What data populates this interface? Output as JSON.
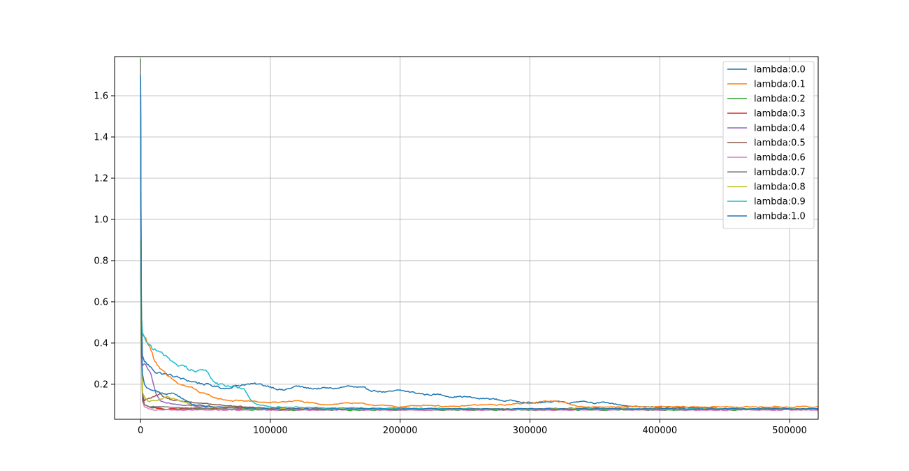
{
  "chart_data": {
    "type": "line",
    "title": "",
    "xlabel": "",
    "ylabel": "",
    "xlim": [
      -20000,
      522000
    ],
    "ylim": [
      0.03,
      1.79
    ],
    "xticks": [
      0,
      100000,
      200000,
      300000,
      400000,
      500000
    ],
    "xtick_labels": [
      "0",
      "100000",
      "200000",
      "300000",
      "400000",
      "500000"
    ],
    "yticks": [
      0.2,
      0.4,
      0.6,
      0.8,
      1.0,
      1.2,
      1.4,
      1.6
    ],
    "ytick_labels": [
      "0.2",
      "0.4",
      "0.6",
      "0.8",
      "1.0",
      "1.2",
      "1.4",
      "1.6"
    ],
    "grid": true,
    "legend_position": "top-right",
    "series": [
      {
        "name": "lambda:0.0",
        "color": "#1f77b4",
        "x": [
          0,
          500,
          1500,
          3000,
          5000,
          8000,
          12000,
          18000,
          25000,
          35000,
          50000,
          65000,
          80000,
          90000,
          100000,
          110000,
          120000,
          130000,
          140000,
          150000,
          160000,
          170000,
          180000,
          190000,
          200000,
          210000,
          220000,
          230000,
          240000,
          250000,
          260000,
          270000,
          280000,
          290000,
          300000,
          310000,
          320000,
          330000,
          340000,
          350000,
          360000,
          370000,
          380000,
          400000,
          420000,
          440000,
          460000,
          480000,
          500000,
          522000
        ],
        "y": [
          0.85,
          0.62,
          0.34,
          0.31,
          0.3,
          0.28,
          0.26,
          0.25,
          0.24,
          0.22,
          0.2,
          0.18,
          0.2,
          0.2,
          0.19,
          0.17,
          0.19,
          0.18,
          0.18,
          0.18,
          0.19,
          0.18,
          0.17,
          0.16,
          0.17,
          0.16,
          0.15,
          0.15,
          0.14,
          0.14,
          0.13,
          0.13,
          0.12,
          0.12,
          0.11,
          0.11,
          0.12,
          0.11,
          0.12,
          0.11,
          0.11,
          0.1,
          0.09,
          0.09,
          0.085,
          0.085,
          0.08,
          0.085,
          0.08,
          0.08
        ]
      },
      {
        "name": "lambda:0.1",
        "color": "#ff7f0e",
        "x": [
          0,
          500,
          1500,
          3000,
          6000,
          10000,
          15000,
          20000,
          25000,
          30000,
          40000,
          50000,
          60000,
          70000,
          80000,
          100000,
          120000,
          140000,
          160000,
          180000,
          200000,
          220000,
          240000,
          260000,
          280000,
          300000,
          320000,
          340000,
          360000,
          380000,
          400000,
          440000,
          480000,
          522000
        ],
        "y": [
          0.75,
          0.55,
          0.45,
          0.43,
          0.4,
          0.33,
          0.28,
          0.24,
          0.22,
          0.2,
          0.18,
          0.15,
          0.13,
          0.12,
          0.12,
          0.11,
          0.12,
          0.1,
          0.11,
          0.1,
          0.09,
          0.1,
          0.09,
          0.1,
          0.1,
          0.11,
          0.12,
          0.09,
          0.09,
          0.09,
          0.09,
          0.09,
          0.09,
          0.09
        ]
      },
      {
        "name": "lambda:0.2",
        "color": "#2ca02c",
        "x": [
          0,
          300,
          800,
          1500,
          3000,
          6000,
          10000,
          20000,
          40000,
          60000,
          100000,
          150000,
          200000,
          250000,
          300000,
          350000,
          400000,
          450000,
          500000,
          522000
        ],
        "y": [
          1.78,
          1.2,
          0.4,
          0.15,
          0.1,
          0.09,
          0.085,
          0.08,
          0.08,
          0.08,
          0.075,
          0.075,
          0.075,
          0.075,
          0.075,
          0.075,
          0.075,
          0.075,
          0.08,
          0.075
        ]
      },
      {
        "name": "lambda:0.3",
        "color": "#d62728",
        "x": [
          0,
          300,
          800,
          1500,
          3000,
          6000,
          10000,
          20000,
          40000,
          60000,
          100000,
          150000,
          200000,
          250000,
          300000,
          350000,
          400000,
          450000,
          500000,
          522000
        ],
        "y": [
          1.7,
          1.1,
          0.35,
          0.14,
          0.1,
          0.09,
          0.085,
          0.08,
          0.08,
          0.08,
          0.08,
          0.08,
          0.08,
          0.08,
          0.08,
          0.08,
          0.08,
          0.08,
          0.08,
          0.08
        ]
      },
      {
        "name": "lambda:0.4",
        "color": "#9467bd",
        "x": [
          0,
          500,
          1500,
          3000,
          5000,
          8000,
          12000,
          15000,
          20000,
          30000,
          50000,
          80000,
          100000,
          150000,
          200000,
          250000,
          300000,
          350000,
          400000,
          450000,
          500000,
          522000
        ],
        "y": [
          0.8,
          0.45,
          0.29,
          0.3,
          0.28,
          0.25,
          0.15,
          0.12,
          0.11,
          0.1,
          0.09,
          0.085,
          0.08,
          0.08,
          0.08,
          0.08,
          0.08,
          0.085,
          0.08,
          0.08,
          0.08,
          0.08
        ]
      },
      {
        "name": "lambda:0.5",
        "color": "#8c564b",
        "x": [
          0,
          500,
          1500,
          3000,
          6000,
          10000,
          15000,
          20000,
          30000,
          45000,
          60000,
          80000,
          100000,
          150000,
          200000,
          250000,
          300000,
          350000,
          400000,
          450000,
          500000,
          522000
        ],
        "y": [
          1.6,
          0.5,
          0.15,
          0.12,
          0.13,
          0.14,
          0.15,
          0.13,
          0.12,
          0.11,
          0.1,
          0.09,
          0.085,
          0.08,
          0.08,
          0.08,
          0.08,
          0.08,
          0.08,
          0.08,
          0.08,
          0.08
        ]
      },
      {
        "name": "lambda:0.6",
        "color": "#e377c2",
        "x": [
          0,
          300,
          800,
          1500,
          3000,
          6000,
          10000,
          20000,
          40000,
          60000,
          100000,
          150000,
          200000,
          250000,
          300000,
          350000,
          400000,
          450000,
          500000,
          522000
        ],
        "y": [
          1.55,
          0.9,
          0.3,
          0.12,
          0.09,
          0.08,
          0.075,
          0.075,
          0.075,
          0.075,
          0.075,
          0.075,
          0.075,
          0.075,
          0.075,
          0.075,
          0.075,
          0.075,
          0.075,
          0.075
        ]
      },
      {
        "name": "lambda:0.7",
        "color": "#7f7f7f",
        "x": [
          0,
          300,
          800,
          1500,
          3000,
          6000,
          10000,
          20000,
          40000,
          60000,
          100000,
          150000,
          200000,
          250000,
          300000,
          350000,
          400000,
          450000,
          500000,
          522000
        ],
        "y": [
          1.77,
          1.0,
          0.35,
          0.12,
          0.1,
          0.09,
          0.09,
          0.09,
          0.085,
          0.08,
          0.08,
          0.08,
          0.08,
          0.08,
          0.08,
          0.08,
          0.08,
          0.08,
          0.08,
          0.08
        ]
      },
      {
        "name": "lambda:0.8",
        "color": "#bcbd22",
        "x": [
          0,
          500,
          1500,
          3000,
          6000,
          10000,
          15000,
          20000,
          30000,
          40000,
          60000,
          80000,
          100000,
          150000,
          200000,
          250000,
          300000,
          350000,
          400000,
          450000,
          500000,
          522000
        ],
        "y": [
          0.9,
          0.4,
          0.16,
          0.14,
          0.12,
          0.12,
          0.13,
          0.14,
          0.12,
          0.1,
          0.09,
          0.085,
          0.08,
          0.08,
          0.08,
          0.08,
          0.08,
          0.08,
          0.08,
          0.08,
          0.08,
          0.08
        ]
      },
      {
        "name": "lambda:0.9",
        "color": "#17becf",
        "x": [
          0,
          500,
          1500,
          3000,
          6000,
          10000,
          15000,
          20000,
          25000,
          30000,
          40000,
          50000,
          55000,
          60000,
          70000,
          80000,
          85000,
          90000,
          100000,
          120000,
          150000,
          200000,
          250000,
          300000,
          350000,
          400000,
          450000,
          500000,
          522000
        ],
        "y": [
          1.49,
          0.55,
          0.44,
          0.43,
          0.4,
          0.37,
          0.35,
          0.34,
          0.31,
          0.29,
          0.27,
          0.27,
          0.22,
          0.2,
          0.19,
          0.18,
          0.12,
          0.1,
          0.09,
          0.09,
          0.085,
          0.085,
          0.08,
          0.08,
          0.08,
          0.08,
          0.08,
          0.08,
          0.08
        ]
      },
      {
        "name": "lambda:1.0",
        "color": "#1f77b4",
        "x": [
          0,
          300,
          800,
          1500,
          3000,
          6000,
          10000,
          15000,
          20000,
          25000,
          30000,
          40000,
          60000,
          80000,
          100000,
          150000,
          200000,
          250000,
          300000,
          350000,
          400000,
          450000,
          500000,
          522000
        ],
        "y": [
          1.7,
          0.9,
          0.35,
          0.25,
          0.2,
          0.18,
          0.17,
          0.16,
          0.15,
          0.16,
          0.14,
          0.1,
          0.09,
          0.085,
          0.08,
          0.08,
          0.08,
          0.08,
          0.08,
          0.08,
          0.08,
          0.08,
          0.08,
          0.08
        ]
      }
    ]
  }
}
